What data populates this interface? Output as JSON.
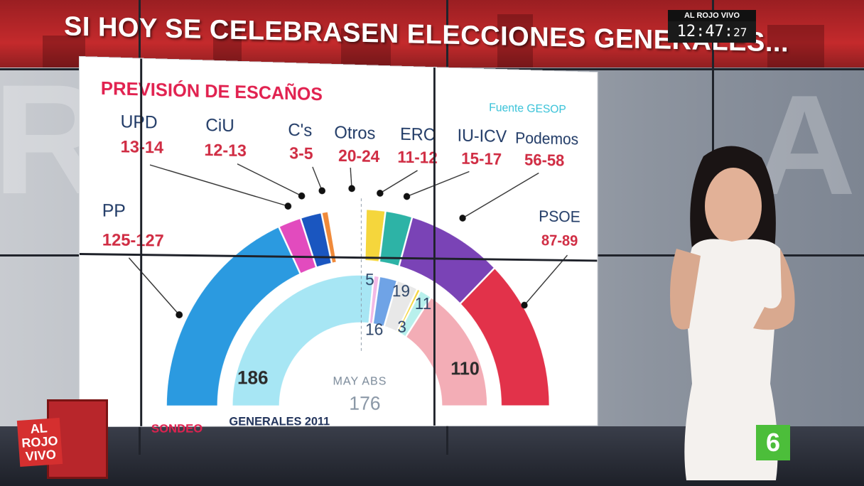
{
  "headline": "SI HOY SE CELEBRASEN ELECCIONES GENERALES...",
  "clock": {
    "brand": "AL ROJO VIVO",
    "time": "12:47:",
    "seconds": "27"
  },
  "logos": {
    "show": "AL ROJO VIVO",
    "channel": "6"
  },
  "colors": {
    "PP": "#2b9ae0",
    "PSOE": "#e2324a",
    "UPD": "#e24bbe",
    "CiU": "#1a56c0",
    "Cs": "#f08a3a",
    "Otros": "#ffffff",
    "ERC": "#f5d63c",
    "IUICV": "#2db3a6",
    "Podemos": "#7a43b6",
    "pp2011": "#a7e6f4",
    "psoe2011": "#f3adb6",
    "ciu2011": "#6fa3e6",
    "upd2011": "#f2b9e6",
    "iu2011": "#b8f0ec",
    "otros2011": "#e8e8e8"
  },
  "chart_data": {
    "type": "pie",
    "subtype": "semicircle-parliament",
    "title": "PREVISIÓN DE ESCAÑOS",
    "source": "Fuente  GESOP",
    "outer_label": "SONDEO",
    "inner_label": "GENERALES 2011",
    "majority_label": "MAY ABS",
    "majority_value": "176",
    "sondeo": [
      {
        "party": "PP",
        "range": "125-127",
        "seats": 126
      },
      {
        "party": "UPD",
        "range": "13-14",
        "seats": 13.5
      },
      {
        "party": "CiU",
        "range": "12-13",
        "seats": 12.5
      },
      {
        "party": "C's",
        "range": "3-5",
        "seats": 4
      },
      {
        "party": "Otros",
        "range": "20-24",
        "seats": 22
      },
      {
        "party": "ERC",
        "range": "11-12",
        "seats": 11.5
      },
      {
        "party": "IU-ICV",
        "range": "15-17",
        "seats": 16
      },
      {
        "party": "Podemos",
        "range": "56-58",
        "seats": 57
      },
      {
        "party": "PSOE",
        "range": "87-89",
        "seats": 88
      }
    ],
    "generales_2011": [
      {
        "party": "PP",
        "seats": 186,
        "label": "186"
      },
      {
        "party": "UPD",
        "seats": 5,
        "label": "5"
      },
      {
        "party": "CiU",
        "seats": 16,
        "label": "16"
      },
      {
        "party": "Otros",
        "seats": 19,
        "label": "19"
      },
      {
        "party": "ERC",
        "seats": 3,
        "label": "3"
      },
      {
        "party": "IU-ICV",
        "seats": 11,
        "label": "11"
      },
      {
        "party": "PSOE",
        "seats": 110,
        "label": "110"
      }
    ]
  }
}
